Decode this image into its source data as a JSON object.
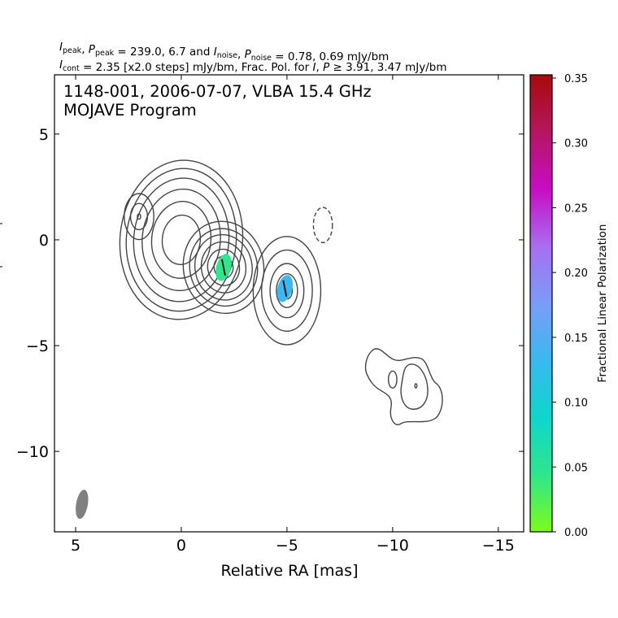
{
  "header": {
    "line1": [
      {
        "t": "I",
        "i": true
      },
      {
        "t": "peak",
        "sub": true
      },
      {
        "t": ", "
      },
      {
        "t": "P",
        "i": true
      },
      {
        "t": "peak",
        "sub": true
      },
      {
        "t": " = 239.0, 6.7 and "
      },
      {
        "t": "I",
        "i": true
      },
      {
        "t": "noise",
        "sub": true
      },
      {
        "t": ", "
      },
      {
        "t": "P",
        "i": true
      },
      {
        "t": "noise",
        "sub": true
      },
      {
        "t": " = 0.78, 0.69 mJy/bm"
      }
    ],
    "line2": [
      {
        "t": "I",
        "i": true
      },
      {
        "t": "cont",
        "sub": true
      },
      {
        "t": " = 2.35 [x2.0 steps] mJy/bm, Frac. Pol. for "
      },
      {
        "t": "I",
        "i": true
      },
      {
        "t": ", "
      },
      {
        "t": "P",
        "i": true
      },
      {
        "t": " ≥  3.91, 3.47 mJy/bm"
      }
    ]
  },
  "chart_data": {
    "type": "contour",
    "title_lines": [
      "1148-001, 2006-07-07, VLBA 15.4 GHz",
      "MOJAVE Program"
    ],
    "xlabel": "Relative RA [mas]",
    "ylabel": "",
    "xlim": [
      6.0,
      -16.2
    ],
    "ylim": [
      -13.8,
      7.8
    ],
    "x_ticks": [
      5,
      0,
      -5,
      -10,
      -15
    ],
    "x_tick_labels": [
      "5",
      "0",
      "−5",
      "−10",
      "−15"
    ],
    "y_ticks": [
      5,
      0,
      -5,
      -10
    ],
    "y_tick_labels": [
      "5",
      "0",
      "−5",
      "−10"
    ],
    "contour_color": "#444444",
    "components": [
      {
        "name": "core",
        "x": 0.0,
        "y": 0.0,
        "rx_levels": [
          0.9,
          1.4,
          1.85,
          2.25,
          2.6,
          2.9
        ],
        "ry_ratio": 1.3,
        "tilt": 5
      },
      {
        "name": "inner-knot",
        "x": -2.0,
        "y": -1.3,
        "rx_levels": [
          0.45,
          0.75,
          1.05,
          1.35,
          1.6,
          1.9
        ],
        "ry_ratio": 1.15,
        "tilt": -10
      },
      {
        "name": "middle-knot",
        "x": -5.0,
        "y": -2.4,
        "rx_levels": [
          0.25,
          0.5,
          0.8,
          1.2,
          1.6
        ],
        "ry_ratio": 1.6,
        "tilt": 0
      },
      {
        "name": "north-blob",
        "x": 2.0,
        "y": 1.1,
        "rx_levels": [
          0.08,
          0.4,
          0.7
        ],
        "ry_ratio": 1.55,
        "tilt": 0
      },
      {
        "name": "negative-blob",
        "x": -6.7,
        "y": 0.7,
        "rx_levels": [
          0.45
        ],
        "ry_ratio": 1.85,
        "tilt": 0,
        "dashed": true
      },
      {
        "name": "outer-knot-a",
        "x": -10.0,
        "y": -6.6,
        "rx_levels": [
          0.2
        ],
        "ry_ratio": 2.0,
        "tilt": 0
      },
      {
        "name": "outer-knot-b",
        "x": -11.1,
        "y": -6.9,
        "rx_levels": [
          0.05
        ],
        "ry_ratio": 2.0,
        "tilt": 0
      }
    ],
    "polarization_patches": [
      {
        "x": -2.0,
        "y": -1.3,
        "frac_pol": 0.05
      },
      {
        "x": -4.9,
        "y": -2.3,
        "frac_pol": 0.11
      }
    ],
    "beam": {
      "x": 4.7,
      "y": -12.5,
      "major_mas": 1.4,
      "minor_mas": 0.55,
      "pa_deg": 10
    },
    "colorbar": {
      "label": "Fractional Linear Polarization",
      "range": [
        0.0,
        0.35
      ],
      "ticks": [
        0.0,
        0.05,
        0.1,
        0.15,
        0.2,
        0.25,
        0.3,
        0.35
      ],
      "tick_labels": [
        "0.00",
        "0.05",
        "0.10",
        "0.15",
        "0.20",
        "0.25",
        "0.30",
        "0.35"
      ],
      "colors": [
        "#7cfc1c",
        "#2ee68c",
        "#0ed6cc",
        "#3ab8f0",
        "#7a9cf8",
        "#a86ef2",
        "#c80cc4",
        "#b41660",
        "#a80a0a"
      ]
    }
  }
}
